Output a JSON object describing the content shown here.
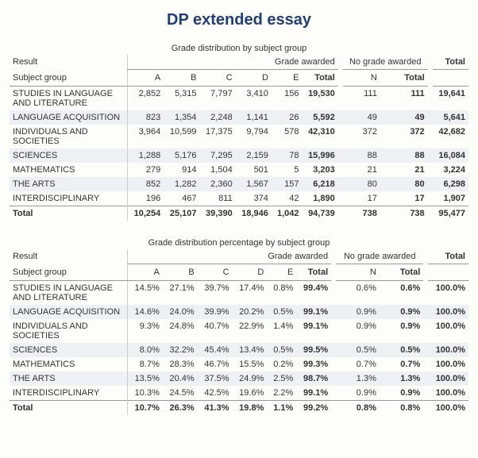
{
  "title": "DP extended essay",
  "title_color": "#1f3f77",
  "tables": [
    {
      "caption": "Grade distribution by subject group",
      "headers": {
        "result": "Result",
        "grade_awarded": "Grade awarded",
        "no_grade_awarded": "No grade awarded",
        "total": "Total",
        "subject_group": "Subject group",
        "cols": [
          "A",
          "B",
          "C",
          "D",
          "E",
          "Total",
          "N",
          "Total"
        ]
      },
      "rows": [
        {
          "label": "STUDIES IN LANGUAGE AND LITERATURE",
          "vals": [
            "2,852",
            "5,315",
            "7,797",
            "3,410",
            "156",
            "19,530",
            "111",
            "111",
            "19,641"
          ],
          "zebra": false
        },
        {
          "label": "LANGUAGE ACQUISITION",
          "vals": [
            "823",
            "1,354",
            "2,248",
            "1,141",
            "26",
            "5,592",
            "49",
            "49",
            "5,641"
          ],
          "zebra": true
        },
        {
          "label": "INDIVIDUALS AND SOCIETIES",
          "vals": [
            "3,964",
            "10,599",
            "17,375",
            "9,794",
            "578",
            "42,310",
            "372",
            "372",
            "42,682"
          ],
          "zebra": false
        },
        {
          "label": "SCIENCES",
          "vals": [
            "1,288",
            "5,176",
            "7,295",
            "2,159",
            "78",
            "15,996",
            "88",
            "88",
            "16,084"
          ],
          "zebra": true
        },
        {
          "label": "MATHEMATICS",
          "vals": [
            "279",
            "914",
            "1,504",
            "501",
            "5",
            "3,203",
            "21",
            "21",
            "3,224"
          ],
          "zebra": false
        },
        {
          "label": "THE ARTS",
          "vals": [
            "852",
            "1,282",
            "2,360",
            "1,567",
            "157",
            "6,218",
            "80",
            "80",
            "6,298"
          ],
          "zebra": true
        },
        {
          "label": "INTERDISCIPLINARY",
          "vals": [
            "196",
            "467",
            "811",
            "374",
            "42",
            "1,890",
            "17",
            "17",
            "1,907"
          ],
          "zebra": false
        }
      ],
      "total": {
        "label": "Total",
        "vals": [
          "10,254",
          "25,107",
          "39,390",
          "18,946",
          "1,042",
          "94,739",
          "738",
          "738",
          "95,477"
        ]
      }
    },
    {
      "caption": "Grade distribution percentage by subject group",
      "headers": {
        "result": "Result",
        "grade_awarded": "Grade awarded",
        "no_grade_awarded": "No grade awarded",
        "total": "Total",
        "subject_group": "Subject group",
        "cols": [
          "A",
          "B",
          "C",
          "D",
          "E",
          "Total",
          "N",
          "Total"
        ]
      },
      "rows": [
        {
          "label": "STUDIES IN LANGUAGE AND LITERATURE",
          "vals": [
            "14.5%",
            "27.1%",
            "39.7%",
            "17.4%",
            "0.8%",
            "99.4%",
            "0.6%",
            "0.6%",
            "100.0%"
          ],
          "zebra": false
        },
        {
          "label": "LANGUAGE ACQUISITION",
          "vals": [
            "14.6%",
            "24.0%",
            "39.9%",
            "20.2%",
            "0.5%",
            "99.1%",
            "0.9%",
            "0.9%",
            "100.0%"
          ],
          "zebra": true
        },
        {
          "label": "INDIVIDUALS AND SOCIETIES",
          "vals": [
            "9.3%",
            "24.8%",
            "40.7%",
            "22.9%",
            "1.4%",
            "99.1%",
            "0.9%",
            "0.9%",
            "100.0%"
          ],
          "zebra": false
        },
        {
          "label": "SCIENCES",
          "vals": [
            "8.0%",
            "32.2%",
            "45.4%",
            "13.4%",
            "0.5%",
            "99.5%",
            "0.5%",
            "0.5%",
            "100.0%"
          ],
          "zebra": true
        },
        {
          "label": "MATHEMATICS",
          "vals": [
            "8.7%",
            "28.3%",
            "46.7%",
            "15.5%",
            "0.2%",
            "99.3%",
            "0.7%",
            "0.7%",
            "100.0%"
          ],
          "zebra": false
        },
        {
          "label": "THE ARTS",
          "vals": [
            "13.5%",
            "20.4%",
            "37.5%",
            "24.9%",
            "2.5%",
            "98.7%",
            "1.3%",
            "1.3%",
            "100.0%"
          ],
          "zebra": true
        },
        {
          "label": "INTERDISCIPLINARY",
          "vals": [
            "10.3%",
            "24.5%",
            "42.5%",
            "19.6%",
            "2.2%",
            "99.1%",
            "0.9%",
            "0.9%",
            "100.0%"
          ],
          "zebra": false
        }
      ],
      "total": {
        "label": "Total",
        "vals": [
          "10.7%",
          "26.3%",
          "41.3%",
          "19.8%",
          "1.1%",
          "99.2%",
          "0.8%",
          "0.8%",
          "100.0%"
        ]
      }
    }
  ]
}
